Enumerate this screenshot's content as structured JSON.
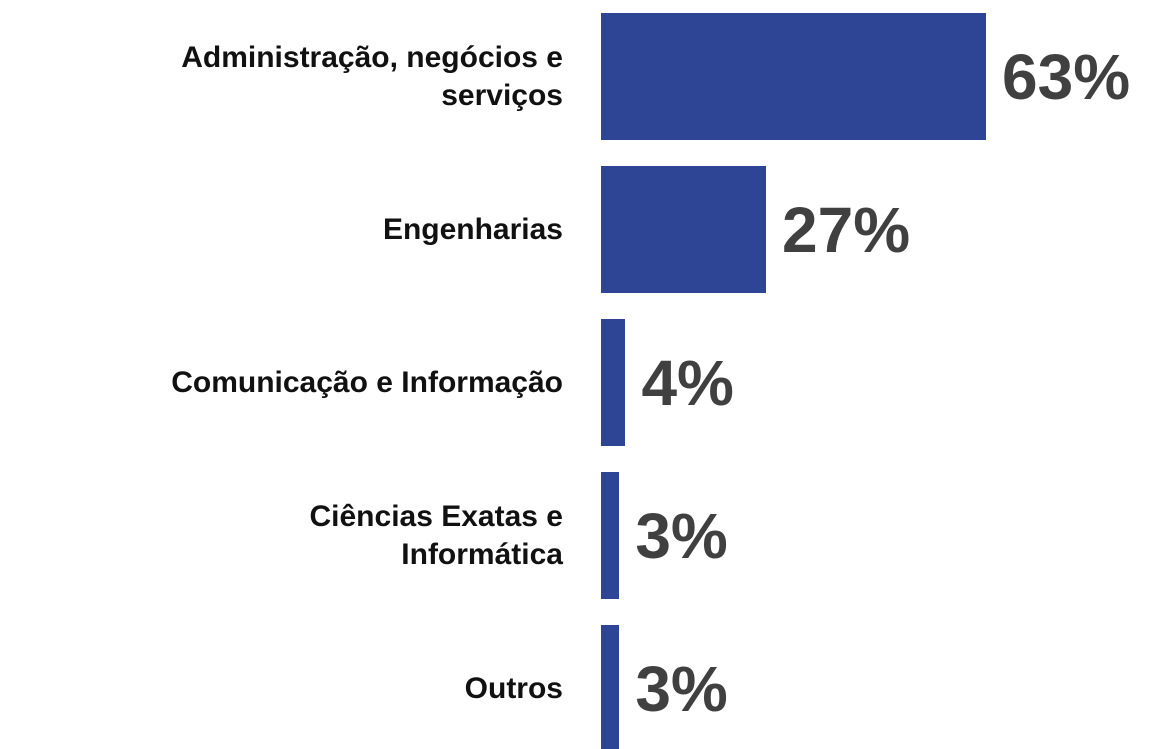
{
  "chart_data": {
    "type": "bar",
    "orientation": "horizontal",
    "categories": [
      "Administração, negócios e\nserviços",
      "Engenharias",
      "Comunicação e Informação",
      "Ciências Exatas e\nInformática",
      "Outros"
    ],
    "values": [
      63,
      27,
      4,
      3,
      3
    ],
    "value_labels": [
      "63%",
      "27%",
      "4%",
      "3%",
      "3%"
    ],
    "color": "#2e4595"
  }
}
